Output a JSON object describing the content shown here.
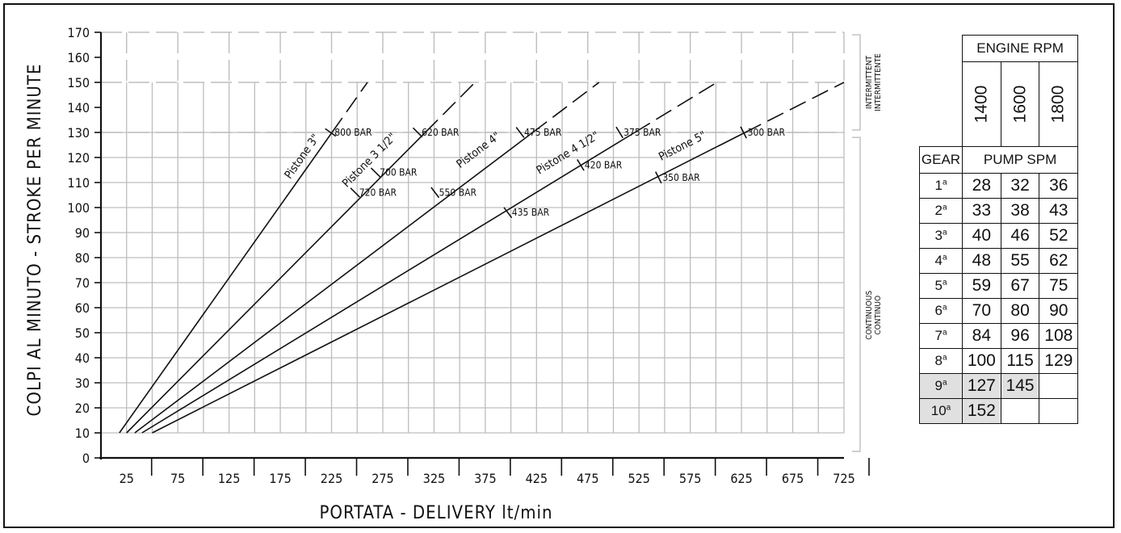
{
  "chart_data": {
    "type": "line",
    "ylabel": "COLPI AL MINUTO - STROKE PER MINUTE",
    "xlabel": "PORTATA - DELIVERY lt/min",
    "xlim": [
      0,
      725
    ],
    "ylim": [
      0,
      170
    ],
    "x_ticks": [
      25,
      75,
      125,
      175,
      225,
      275,
      325,
      375,
      425,
      475,
      525,
      575,
      625,
      675,
      725
    ],
    "y_ticks": [
      0,
      10,
      20,
      30,
      40,
      50,
      60,
      70,
      80,
      90,
      100,
      110,
      120,
      130,
      140,
      150,
      160,
      170
    ],
    "grid": true,
    "zones": {
      "intermittent": "INTERMITTENT\nINTERMITTENTE",
      "continuous": "CONTINUOUS\nCONTINUO"
    },
    "series": [
      {
        "name": "Pistone 3\"",
        "x": [
          18,
          260
        ],
        "y": [
          10,
          150
        ],
        "solid_until_y": 130,
        "markers": [
          {
            "x": 224,
            "y": 130,
            "label": "800 BAR"
          }
        ]
      },
      {
        "name": "Pistone 3 1/2\"",
        "x": [
          25,
          365
        ],
        "y": [
          10,
          150
        ],
        "solid_until_y": 130,
        "markers": [
          {
            "x": 309,
            "y": 130,
            "label": "620 BAR"
          },
          {
            "x": 268,
            "y": 114,
            "label": "700 BAR"
          },
          {
            "x": 248,
            "y": 106,
            "label": "720 BAR"
          }
        ]
      },
      {
        "name": "Pistone 4\"",
        "x": [
          33,
          486
        ],
        "y": [
          10,
          150
        ],
        "solid_until_y": 130,
        "markers": [
          {
            "x": 409,
            "y": 130,
            "label": "475 BAR"
          },
          {
            "x": 326,
            "y": 106,
            "label": "550 BAR"
          },
          {
            "x": 397,
            "y": 98,
            "label": "435 BAR"
          }
        ]
      },
      {
        "name": "Pistone 4 1/2\"",
        "x": [
          40,
          601
        ],
        "y": [
          10,
          150
        ],
        "solid_until_y": 130,
        "markers": [
          {
            "x": 506,
            "y": 130,
            "label": "375 BAR"
          },
          {
            "x": 468,
            "y": 117,
            "label": "420 BAR"
          }
        ]
      },
      {
        "name": "Pistone 5\"",
        "x": [
          50,
          725
        ],
        "y": [
          10,
          150
        ],
        "solid_until_y": 130,
        "markers": [
          {
            "x": 627,
            "y": 130,
            "label": "300 BAR"
          },
          {
            "x": 544,
            "y": 112,
            "label": "350 BAR"
          }
        ]
      }
    ]
  },
  "table": {
    "engine_rpm_label": "ENGINE RPM",
    "rpm": [
      "1400",
      "1600",
      "1800"
    ],
    "gear_label": "GEAR",
    "pump_spm_label": "PUMP SPM",
    "gear_suffix": "a",
    "rows": [
      {
        "gear": "1",
        "values": [
          "28",
          "32",
          "36"
        ]
      },
      {
        "gear": "2",
        "values": [
          "33",
          "38",
          "43"
        ]
      },
      {
        "gear": "3",
        "values": [
          "40",
          "46",
          "52"
        ]
      },
      {
        "gear": "4",
        "values": [
          "48",
          "55",
          "62"
        ]
      },
      {
        "gear": "5",
        "values": [
          "59",
          "67",
          "75"
        ]
      },
      {
        "gear": "6",
        "values": [
          "70",
          "80",
          "90"
        ]
      },
      {
        "gear": "7",
        "values": [
          "84",
          "96",
          "108"
        ]
      },
      {
        "gear": "8",
        "values": [
          "100",
          "115",
          "129"
        ]
      },
      {
        "gear": "9",
        "values": [
          "127",
          "145",
          ""
        ],
        "shaded": true
      },
      {
        "gear": "10",
        "values": [
          "152",
          "",
          ""
        ],
        "shaded": true
      }
    ]
  }
}
